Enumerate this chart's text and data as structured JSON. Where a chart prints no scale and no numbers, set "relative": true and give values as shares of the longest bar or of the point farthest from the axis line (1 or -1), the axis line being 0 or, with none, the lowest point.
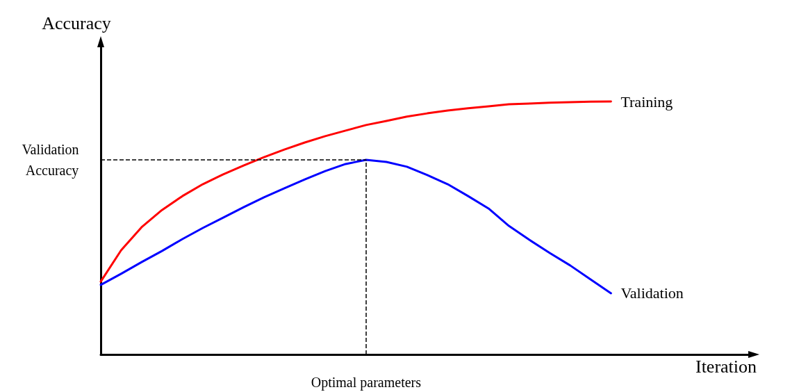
{
  "chart_data": {
    "type": "line",
    "relative": true,
    "xlabel": "Iteration",
    "ylabel": "Accuracy",
    "legend": false,
    "grid": false,
    "marker": "none",
    "line_style": "solid",
    "annotations": [
      "Optimal parameters"
    ],
    "categories": [
      null,
      null,
      null,
      null,
      null,
      null,
      null,
      null,
      null,
      null,
      null,
      null,
      null,
      null,
      null,
      null,
      null,
      null,
      null,
      null,
      null,
      null,
      null,
      null,
      null,
      null
    ],
    "series": [
      {
        "name": "Training",
        "color": "#ff0000",
        "values": [
          0.288,
          0.412,
          0.503,
          0.571,
          0.626,
          0.673,
          0.712,
          0.747,
          0.78,
          0.81,
          0.838,
          0.863,
          0.885,
          0.907,
          0.923,
          0.94,
          0.953,
          0.964,
          0.973,
          0.981,
          0.989,
          0.992,
          0.995,
          0.997,
          0.999,
          1
        ]
      },
      {
        "name": "Validation",
        "color": "#0000ff",
        "values": [
          0.275,
          0.319,
          0.365,
          0.409,
          0.456,
          0.5,
          0.541,
          0.582,
          0.621,
          0.657,
          0.692,
          0.725,
          0.753,
          0.769,
          0.761,
          0.742,
          0.709,
          0.673,
          0.626,
          0.577,
          0.508,
          0.453,
          0.401,
          0.352,
          0.297,
          0.242
        ]
      }
    ],
    "ref_lines": [
      {
        "axis": "y",
        "value": 0.769,
        "label": "Validation Accuracy",
        "color": "#000000",
        "line_style": "dashed"
      }
    ]
  }
}
